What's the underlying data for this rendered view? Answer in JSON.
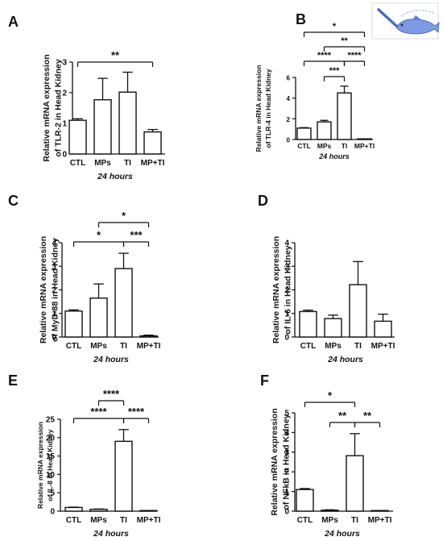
{
  "chart_data": [
    {
      "panel": "A",
      "type": "bar",
      "categories": [
        "CTL",
        "MPs",
        "TI",
        "MP+TI"
      ],
      "values": [
        1.1,
        1.77,
        2.02,
        0.72
      ],
      "errors": [
        0.05,
        0.7,
        0.65,
        0.08
      ],
      "ylabel": "Relative mRNA expression of TLR-2 in Head Kidney",
      "xlabel": "24 hours",
      "ylim": [
        0,
        3
      ],
      "yticks": [
        "0",
        "1",
        "2",
        "3"
      ],
      "significance": [
        {
          "from": "CTL",
          "to": "MP+TI",
          "label": "**"
        }
      ]
    },
    {
      "panel": "B",
      "type": "bar",
      "categories": [
        "CTL",
        "MPs",
        "TI",
        "MP+TI"
      ],
      "values": [
        1.1,
        1.7,
        4.5,
        0.0
      ],
      "errors": [
        0.05,
        0.15,
        0.65,
        0.0
      ],
      "ylabel": "Relative mRNA expression of TLR-4 in Head Kidney",
      "xlabel": "24 hours",
      "ylim": [
        0,
        6
      ],
      "yticks": [
        "0",
        "2",
        "4",
        "6"
      ],
      "inset": "fish-injection-illustration",
      "significance": [
        {
          "from": "CTL",
          "to": "MP+TI",
          "label": "*"
        },
        {
          "from": "MPs",
          "to": "MP+TI",
          "label": "**"
        },
        {
          "from": "CTL",
          "to": "TI",
          "label": "****"
        },
        {
          "from": "TI",
          "to": "MP+TI",
          "label": "****"
        },
        {
          "from": "MPs",
          "to": "TI",
          "label": "***"
        }
      ]
    },
    {
      "panel": "C",
      "type": "bar",
      "categories": [
        "CTL",
        "MPs",
        "TI",
        "MP+TI"
      ],
      "values": [
        1.1,
        1.65,
        2.9,
        0.05
      ],
      "errors": [
        0.05,
        0.6,
        0.65,
        0.03
      ],
      "ylabel": "Relative mRNA expression of MyD-88 in Head Kidney",
      "xlabel": "24 hours",
      "ylim": [
        0,
        4
      ],
      "yticks": [
        "0",
        "1",
        "2",
        "3",
        "4"
      ],
      "significance": [
        {
          "from": "MPs",
          "to": "MP+TI",
          "label": "*"
        },
        {
          "from": "CTL",
          "to": "TI",
          "label": "*"
        },
        {
          "from": "TI",
          "to": "MP+TI",
          "label": "***"
        }
      ]
    },
    {
      "panel": "D",
      "type": "bar",
      "categories": [
        "CTL",
        "MPs",
        "TI",
        "MP+TI"
      ],
      "values": [
        1.08,
        0.78,
        2.22,
        0.67
      ],
      "errors": [
        0.06,
        0.15,
        0.98,
        0.3
      ],
      "ylabel": "Relative mRNA expression of IL-6 in Head Kidney",
      "xlabel": "24 hours",
      "ylim": [
        0,
        4
      ],
      "yticks": [
        "0",
        "1",
        "2",
        "3",
        "4"
      ],
      "significance": []
    },
    {
      "panel": "E",
      "type": "bar",
      "categories": [
        "CTL",
        "MPs",
        "TI",
        "MP+TI"
      ],
      "values": [
        1.0,
        0.5,
        19.0,
        0.0
      ],
      "errors": [
        0.1,
        0.1,
        3.2,
        0.0
      ],
      "ylabel": "Relative mRNA expression of IL-8 in Head Kidney",
      "xlabel": "24 hours",
      "ylim": [
        0,
        25
      ],
      "yticks": [
        "0",
        "5",
        "10",
        "15",
        "20",
        "25"
      ],
      "significance": [
        {
          "from": "MPs",
          "to": "TI",
          "label": "****"
        },
        {
          "from": "CTL",
          "to": "TI",
          "label": "****"
        },
        {
          "from": "TI",
          "to": "MP+TI",
          "label": "****"
        }
      ]
    },
    {
      "panel": "F",
      "type": "bar",
      "categories": [
        "CTL",
        "MPs",
        "TI",
        "MP+TI"
      ],
      "values": [
        1.1,
        0.05,
        2.82,
        0.0
      ],
      "errors": [
        0.05,
        0.02,
        1.12,
        0.0
      ],
      "ylabel": "Relative mRNA expression of NFkB in Head Kidney",
      "xlabel": "24 hours",
      "ylim": [
        0,
        5
      ],
      "yticks": [
        "0",
        "1",
        "2",
        "3",
        "4",
        "5"
      ],
      "significance": [
        {
          "from": "CTL",
          "to": "TI",
          "label": "*"
        },
        {
          "from": "MPs",
          "to": "TI",
          "label": "**"
        },
        {
          "from": "TI",
          "to": "MP+TI",
          "label": "**"
        }
      ]
    }
  ]
}
